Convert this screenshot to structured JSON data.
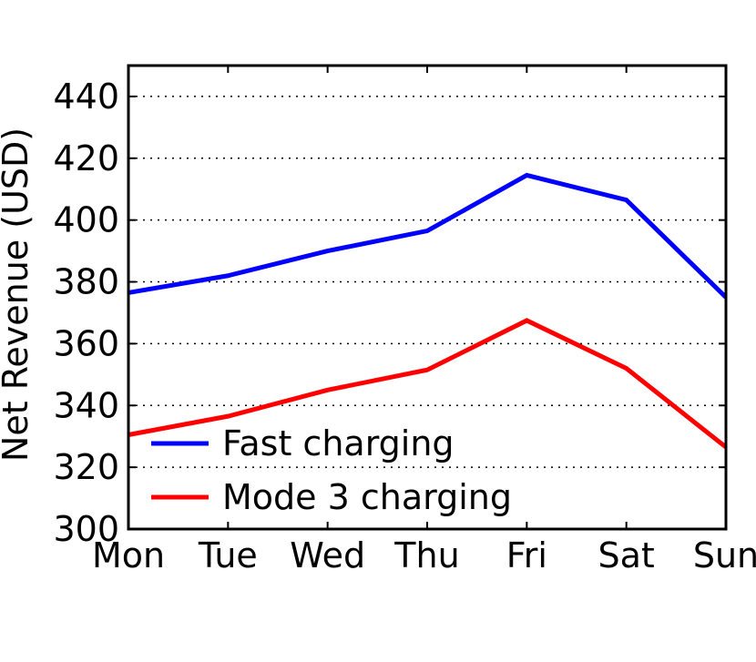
{
  "chart_data": {
    "type": "line",
    "categories": [
      "Mon",
      "Tue",
      "Wed",
      "Thu",
      "Fri",
      "Sat",
      "Sun"
    ],
    "series": [
      {
        "name": "Fast charging",
        "color": "#0000ff",
        "values": [
          376.5,
          382,
          390,
          396.5,
          414.5,
          406.5,
          375
        ]
      },
      {
        "name": "Mode 3 charging",
        "color": "#ff0000",
        "values": [
          330.5,
          336.5,
          345,
          351.5,
          367.5,
          352,
          326.5
        ]
      }
    ],
    "ylabel": "Net Revenue (USD)",
    "xlabel": "",
    "ylim": [
      300,
      450
    ],
    "yticks": [
      300,
      320,
      340,
      360,
      380,
      400,
      420,
      440
    ],
    "grid": "horizontal dotted",
    "legend_position": "lower-left"
  }
}
